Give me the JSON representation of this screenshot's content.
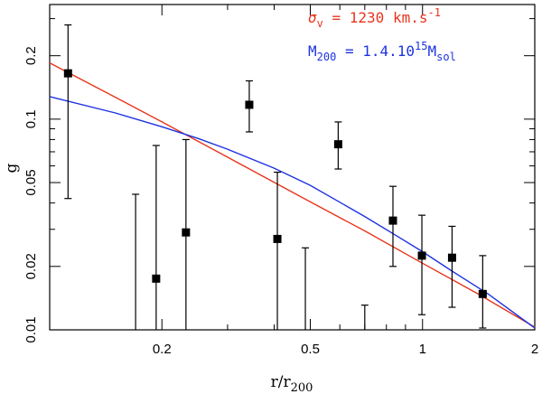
{
  "chart_data": {
    "type": "scatter",
    "title": "",
    "xlabel": "r/r",
    "xlabel_sub": "200",
    "ylabel": "g",
    "xscale": "log",
    "yscale": "log",
    "xlim": [
      0.1,
      2
    ],
    "ylim": [
      0.01,
      0.35
    ],
    "x_ticks": [
      {
        "value": 0.2,
        "label": "0.2"
      },
      {
        "value": 0.5,
        "label": "0.5"
      },
      {
        "value": 1,
        "label": "1"
      },
      {
        "value": 2,
        "label": "2"
      }
    ],
    "y_ticks": [
      {
        "value": 0.01,
        "label": "0.01"
      },
      {
        "value": 0.02,
        "label": "0.02"
      },
      {
        "value": 0.05,
        "label": "0.05"
      },
      {
        "value": 0.1,
        "label": "0.1"
      },
      {
        "value": 0.2,
        "label": "0.2"
      }
    ],
    "points": [
      {
        "x": 0.112,
        "y": 0.165,
        "ylo": 0.042,
        "yhi": 0.28
      },
      {
        "x": 0.193,
        "y": 0.0175,
        "ylo": 0.01,
        "yhi": 0.075
      },
      {
        "x": 0.232,
        "y": 0.029,
        "ylo": 0.01,
        "yhi": 0.08
      },
      {
        "x": 0.343,
        "y": 0.117,
        "ylo": 0.087,
        "yhi": 0.152
      },
      {
        "x": 0.408,
        "y": 0.027,
        "ylo": 0.01,
        "yhi": 0.056
      },
      {
        "x": 0.594,
        "y": 0.076,
        "ylo": 0.058,
        "yhi": 0.097
      },
      {
        "x": 0.833,
        "y": 0.033,
        "ylo": 0.02,
        "yhi": 0.048
      },
      {
        "x": 0.996,
        "y": 0.0225,
        "ylo": 0.0118,
        "yhi": 0.035
      },
      {
        "x": 1.2,
        "y": 0.022,
        "ylo": 0.0128,
        "yhi": 0.031
      },
      {
        "x": 1.45,
        "y": 0.0148,
        "ylo": 0.0102,
        "yhi": 0.0225
      }
    ],
    "upper_limits": [
      {
        "x": 0.17,
        "y": 0.044
      },
      {
        "x": 0.485,
        "y": 0.0245
      },
      {
        "x": 0.7,
        "y": 0.0131
      }
    ],
    "series": [
      {
        "name": "sigma_v",
        "color": "#e8351d",
        "x": [
          0.1,
          0.15,
          0.2,
          0.3,
          0.5,
          0.7,
          1.0,
          1.4,
          2.0
        ],
        "y": [
          0.185,
          0.127,
          0.097,
          0.066,
          0.0405,
          0.0295,
          0.0207,
          0.0149,
          0.0103
        ]
      },
      {
        "name": "M200",
        "color": "#1d33e0",
        "x": [
          0.1,
          0.15,
          0.2,
          0.25,
          0.3,
          0.4,
          0.5,
          0.7,
          0.85,
          1.0,
          1.2,
          1.5,
          2.0
        ],
        "y": [
          0.128,
          0.107,
          0.092,
          0.081,
          0.072,
          0.0585,
          0.0485,
          0.0345,
          0.028,
          0.0235,
          0.019,
          0.0148,
          0.0102
        ]
      }
    ],
    "legend": {
      "position": "top-right",
      "entries": [
        {
          "symbol": "σ",
          "subscript": "v",
          "text": " = 1230 km.s",
          "superscript": "-1",
          "color": "#e8351d"
        },
        {
          "symbol": "M",
          "subscript": "200",
          "text": " = 1.4.10",
          "superscript": "15",
          "suffix": "M",
          "suffix_sub": "sol",
          "color": "#1d33e0"
        }
      ]
    }
  }
}
